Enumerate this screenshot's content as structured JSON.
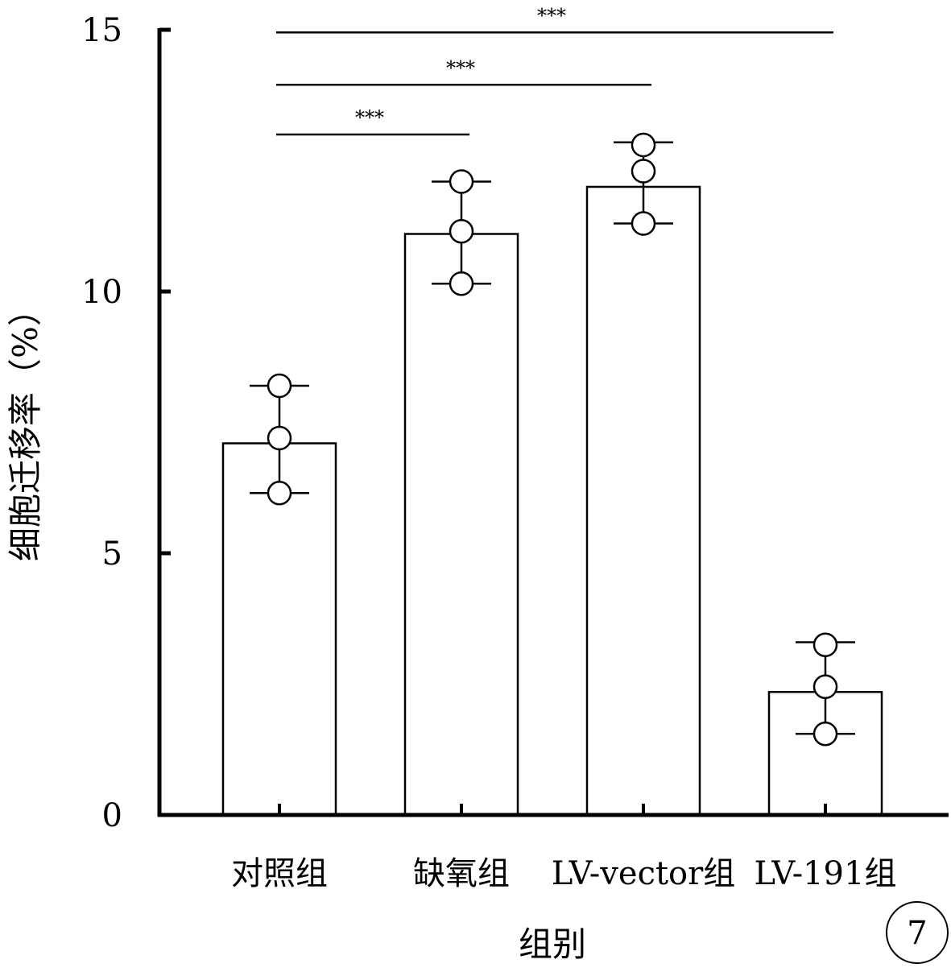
{
  "chart_data": {
    "type": "bar",
    "categories": [
      "对照组",
      "缺氧组",
      "LV-vector组",
      "LV-191组"
    ],
    "values": [
      7.1,
      11.1,
      12.0,
      2.35
    ],
    "error": [
      [
        6.15,
        8.2
      ],
      [
        10.15,
        12.1
      ],
      [
        11.3,
        12.85
      ],
      [
        1.55,
        3.3
      ]
    ],
    "points": [
      [
        6.15,
        7.2,
        8.2
      ],
      [
        10.15,
        11.15,
        12.1
      ],
      [
        11.3,
        12.3,
        12.8
      ],
      [
        1.55,
        2.45,
        3.25
      ]
    ],
    "xlabel": "组别",
    "ylabel": "细胞迁移率（%）",
    "ylim": [
      0,
      15
    ],
    "yticks": [
      0,
      5,
      10,
      15
    ],
    "grid": false,
    "significance": [
      {
        "from": 0,
        "to": 1,
        "y": 13.0,
        "label": "***"
      },
      {
        "from": 0,
        "to": 2,
        "y": 13.95,
        "label": "***"
      },
      {
        "from": 0,
        "to": 3,
        "y": 14.95,
        "label": "***"
      }
    ],
    "panel_label": "7"
  }
}
